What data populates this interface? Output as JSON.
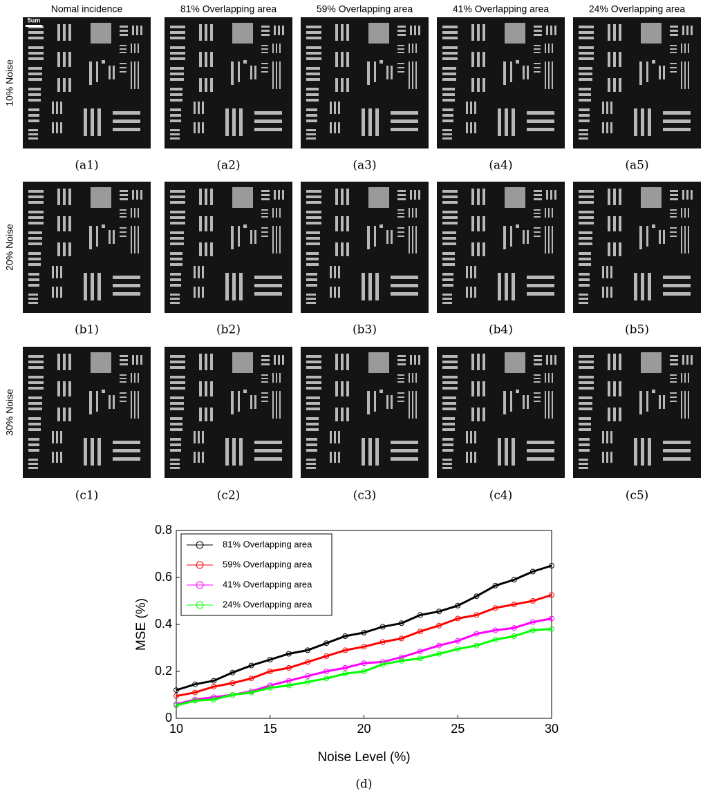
{
  "column_headers": [
    "Nomal incidence",
    "81% Overlapping area",
    "59% Overlapping area",
    "41% Overlapping area",
    "24% Overlapping area"
  ],
  "row_labels": [
    "10% Noise",
    "20% Noise",
    "30% Noise"
  ],
  "scale_label": "5um",
  "panel_captions": [
    [
      "(a1)",
      "(a2)",
      "(a3)",
      "(a4)",
      "(a5)"
    ],
    [
      "(b1)",
      "(b2)",
      "(b3)",
      "(b4)",
      "(b5)"
    ],
    [
      "(c1)",
      "(c2)",
      "(c3)",
      "(c4)",
      "(c5)"
    ]
  ],
  "chart_data": {
    "type": "line",
    "caption": "(d)",
    "x_label": "Noise Level (%)",
    "y_label": "MSE (%)",
    "x": [
      10,
      11,
      12,
      13,
      14,
      15,
      16,
      17,
      18,
      19,
      20,
      21,
      22,
      23,
      24,
      25,
      26,
      27,
      28,
      29,
      30
    ],
    "series": [
      {
        "name": "81% Overlapping area",
        "color": "#000000",
        "values": [
          0.12,
          0.145,
          0.16,
          0.195,
          0.225,
          0.25,
          0.275,
          0.29,
          0.32,
          0.35,
          0.365,
          0.39,
          0.405,
          0.44,
          0.455,
          0.48,
          0.52,
          0.565,
          0.59,
          0.625,
          0.65
        ]
      },
      {
        "name": "59% Overlapping area",
        "color": "#ff0000",
        "values": [
          0.095,
          0.11,
          0.135,
          0.15,
          0.17,
          0.2,
          0.215,
          0.24,
          0.265,
          0.29,
          0.305,
          0.325,
          0.34,
          0.37,
          0.395,
          0.425,
          0.44,
          0.47,
          0.485,
          0.5,
          0.525
        ]
      },
      {
        "name": "41% Overlapping area",
        "color": "#ff00ff",
        "values": [
          0.06,
          0.08,
          0.09,
          0.1,
          0.115,
          0.14,
          0.16,
          0.18,
          0.2,
          0.215,
          0.235,
          0.24,
          0.26,
          0.285,
          0.31,
          0.33,
          0.36,
          0.375,
          0.385,
          0.41,
          0.425
        ]
      },
      {
        "name": "24% Overlapping area",
        "color": "#00ff00",
        "values": [
          0.055,
          0.075,
          0.08,
          0.1,
          0.11,
          0.13,
          0.14,
          0.155,
          0.17,
          0.19,
          0.2,
          0.23,
          0.245,
          0.255,
          0.275,
          0.295,
          0.31,
          0.335,
          0.35,
          0.375,
          0.38
        ]
      }
    ],
    "xlim": [
      10,
      30
    ],
    "xticks": [
      10,
      15,
      20,
      25,
      30
    ],
    "ylim": [
      0,
      0.8
    ],
    "yticks": [
      0,
      0.2,
      0.4,
      0.6,
      0.8
    ],
    "legend": "upper left"
  }
}
